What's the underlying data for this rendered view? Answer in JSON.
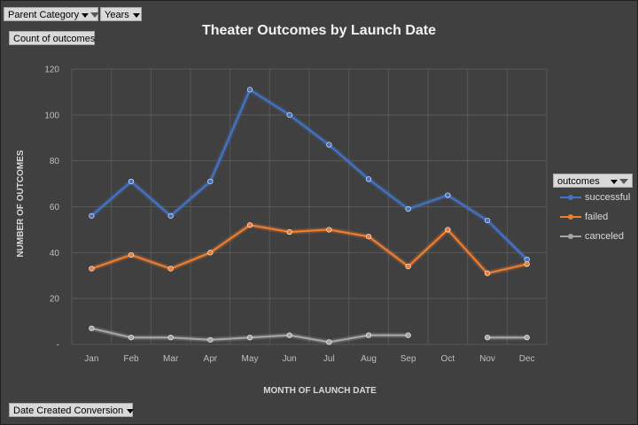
{
  "filters": {
    "parent_category": "Parent Category",
    "years": "Years",
    "value_field": "Count of outcomes",
    "axis_field": "Date Created Conversion"
  },
  "legend": {
    "header": "outcomes"
  },
  "colors": {
    "background": "#404040",
    "successful": "#4472c4",
    "failed": "#ed7d31",
    "canceled": "#a5a5a5",
    "gridline": "#595959"
  },
  "icons": [
    "filter-icon",
    "dropdown-arrow-icon"
  ],
  "chart_data": {
    "type": "line",
    "title": "Theater Outcomes by Launch Date",
    "xlabel": "MONTH OF LAUNCH DATE",
    "ylabel": "NUMBER OF OUTCOMES",
    "categories": [
      "Jan",
      "Feb",
      "Mar",
      "Apr",
      "May",
      "Jun",
      "Jul",
      "Aug",
      "Sep",
      "Oct",
      "Nov",
      "Dec"
    ],
    "ylim": [
      0,
      120
    ],
    "yticks": [
      "-",
      "20",
      "40",
      "60",
      "80",
      "100",
      "120"
    ],
    "grid": true,
    "legend_position": "right",
    "series": [
      {
        "name": "successful",
        "values": [
          56,
          71,
          56,
          71,
          111,
          100,
          87,
          72,
          59,
          65,
          54,
          37
        ]
      },
      {
        "name": "failed",
        "values": [
          33,
          39,
          33,
          40,
          52,
          49,
          50,
          47,
          34,
          50,
          31,
          35
        ]
      },
      {
        "name": "canceled",
        "values": [
          7,
          3,
          3,
          2,
          3,
          4,
          1,
          4,
          4,
          null,
          3,
          3
        ]
      }
    ]
  }
}
